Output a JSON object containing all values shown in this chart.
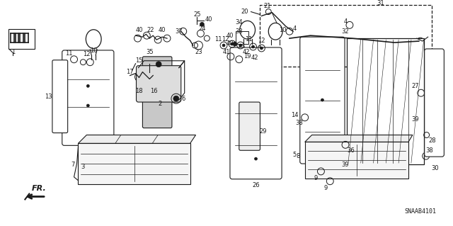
{
  "background_color": "#ffffff",
  "line_color": "#1a1a1a",
  "fig_width": 6.4,
  "fig_height": 3.19,
  "dpi": 100,
  "diagram_code": "SNAAB4101"
}
